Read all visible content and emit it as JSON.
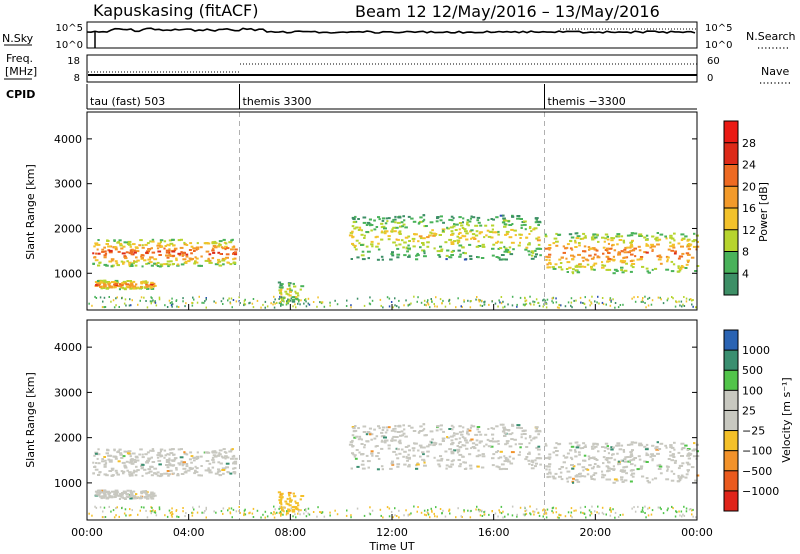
{
  "header": {
    "station": "Kapuskasing (fitACF)",
    "beam_date": "Beam 12  12/May/2016 – 13/May/2016"
  },
  "labels": {
    "nsky": "N.Sky",
    "freq_line1": "Freq.",
    "freq_line2": "[MHz]",
    "cpid": "CPID",
    "nsearch": "N.Search",
    "nave": "Nave"
  },
  "nsky_panel": {
    "left_ticks": [
      "10^5",
      "10^0"
    ],
    "right_ticks": [
      "10^5",
      "10^0"
    ]
  },
  "freq_panel": {
    "left_ticks": [
      "18",
      "8"
    ],
    "right_ticks": [
      "60",
      "0"
    ]
  },
  "cpid_segments": [
    {
      "label": "tau (fast) 503",
      "start_hr": 0,
      "end_hr": 6
    },
    {
      "label": "themis 3300",
      "start_hr": 6,
      "end_hr": 18
    },
    {
      "label": "themis −3300",
      "start_hr": 18,
      "end_hr": 24
    }
  ],
  "time_axis": {
    "label": "Time UT",
    "ticks": [
      "00:00",
      "04:00",
      "08:00",
      "12:00",
      "16:00",
      "20:00",
      "00:00"
    ],
    "range_hr": [
      0,
      24
    ]
  },
  "range_axis": {
    "label": "Slant Range [km]",
    "ticks": [
      "1000",
      "2000",
      "3000",
      "4000"
    ],
    "range_km": [
      180,
      4600
    ]
  },
  "power_colorbar": {
    "title": "Power [dB]",
    "ticks": [
      "4",
      "8",
      "12",
      "16",
      "20",
      "24",
      "28"
    ],
    "colors": [
      "#1a1aee",
      "#2a4fb4",
      "#3d8f66",
      "#49b25a",
      "#b7d42e",
      "#f3c22b",
      "#f39a2a",
      "#ee6a22",
      "#dd2a18",
      "#ea1a14"
    ]
  },
  "velocity_colorbar": {
    "title": "Velocity  [m s⁻¹]",
    "ticks": [
      "1000",
      "500",
      "100",
      "25",
      "−25",
      "−100",
      "−500",
      "−1000"
    ],
    "colors": [
      "#1c3fbf",
      "#2a63b3",
      "#3a8f70",
      "#52c44a",
      "#c8c8c0",
      "#c8c8c0",
      "#f4c029",
      "#f2922a",
      "#ea5a1e",
      "#e0241a"
    ]
  },
  "chart_data": {
    "type": "heatmap",
    "title": "Kapuskasing (fitACF)  Beam 12  12/May/2016 – 13/May/2016",
    "xlabel": "Time UT",
    "ylabel": "Slant Range [km]",
    "x_range_hr": [
      0,
      24
    ],
    "y_range_km": [
      180,
      4600
    ],
    "panels": [
      {
        "name": "Power",
        "unit": "dB",
        "colorbar_ticks": [
          4,
          8,
          12,
          16,
          20,
          24,
          28
        ]
      },
      {
        "name": "Velocity",
        "unit": "m s^-1",
        "colorbar_ticks": [
          1000,
          500,
          100,
          25,
          -25,
          -100,
          -500,
          -1000
        ]
      }
    ],
    "cpid_changes_hr": [
      6,
      18
    ],
    "echo_bands": [
      {
        "start_hr": 0.2,
        "end_hr": 5.8,
        "range_km": [
          1150,
          1750
        ],
        "power_db": 24,
        "velocity": 25
      },
      {
        "start_hr": 0.3,
        "end_hr": 2.6,
        "range_km": [
          640,
          840
        ],
        "power_db": 22,
        "velocity": -25
      },
      {
        "start_hr": 7.5,
        "end_hr": 8.4,
        "range_km": [
          300,
          800
        ],
        "power_db": 16,
        "velocity": -100
      },
      {
        "start_hr": 10.3,
        "end_hr": 17.8,
        "range_km": [
          1300,
          2300
        ],
        "power_db": 16,
        "velocity": 25
      },
      {
        "start_hr": 18.0,
        "end_hr": 24.0,
        "range_km": [
          1000,
          1900
        ],
        "power_db": 22,
        "velocity": 25
      }
    ]
  }
}
